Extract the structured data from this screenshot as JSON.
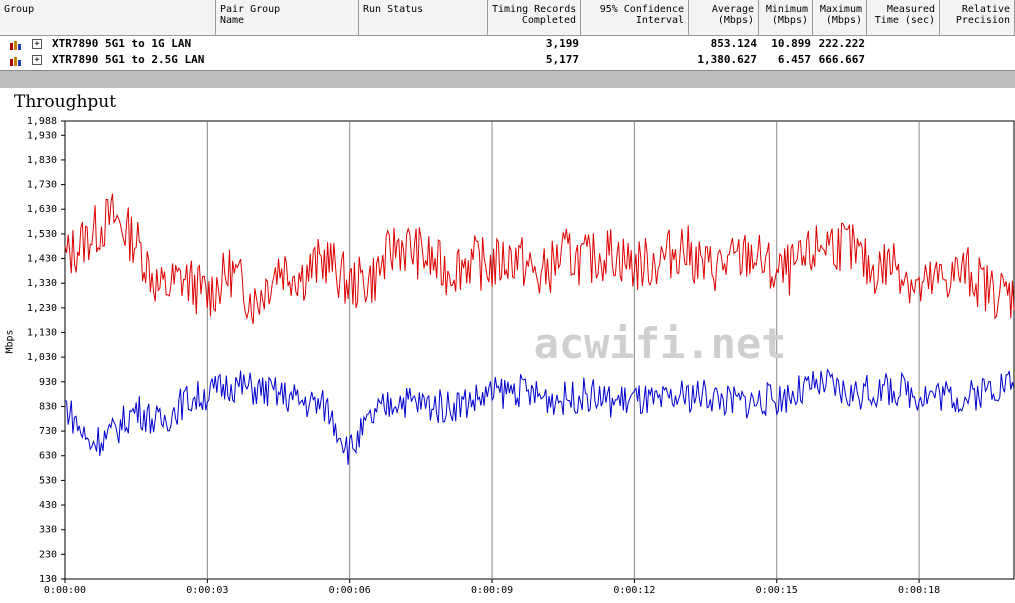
{
  "table": {
    "columns": [
      {
        "key": "group",
        "lines": [
          "",
          "Group"
        ]
      },
      {
        "key": "pair_group_name",
        "lines": [
          "Pair Group",
          "Name"
        ]
      },
      {
        "key": "run_status",
        "lines": [
          "",
          "Run Status"
        ]
      },
      {
        "key": "timing_records",
        "lines": [
          "Timing Records",
          "Completed"
        ]
      },
      {
        "key": "confidence",
        "lines": [
          "95% Confidence",
          "Interval"
        ]
      },
      {
        "key": "average",
        "lines": [
          "Average",
          "(Mbps)"
        ]
      },
      {
        "key": "minimum",
        "lines": [
          "Minimum",
          "(Mbps)"
        ]
      },
      {
        "key": "maximum",
        "lines": [
          "Maximum",
          "(Mbps)"
        ]
      },
      {
        "key": "measured_time",
        "lines": [
          "Measured",
          "Time (sec)"
        ]
      },
      {
        "key": "relative_precision",
        "lines": [
          "Relative",
          "Precision"
        ]
      }
    ],
    "rows": [
      {
        "expand": "+",
        "group": "XTR7890 5G1 to 1G LAN",
        "records": "3,199",
        "average": "853.124",
        "minimum": "10.899",
        "maximum": "222.222",
        "color": "#0000cc"
      },
      {
        "expand": "+",
        "group": "XTR7890 5G1 to 2.5G LAN",
        "records": "5,177",
        "average": "1,380.627",
        "minimum": "6.457",
        "maximum": "666.667",
        "color": "#dd0000"
      }
    ]
  },
  "chart_data": {
    "type": "line",
    "title": "Throughput",
    "ylabel": "Mbps",
    "xlabel": "",
    "y_ticks": [
      1988,
      1930,
      1830,
      1730,
      1630,
      1530,
      1430,
      1330,
      1230,
      1130,
      1030,
      930,
      830,
      730,
      630,
      530,
      430,
      330,
      230,
      130
    ],
    "y_tick_labels": [
      "1,988",
      "1,930",
      "1,830",
      "1,730",
      "1,630",
      "1,530",
      "1,430",
      "1,330",
      "1,230",
      "1,130",
      "1,030",
      "930",
      "830",
      "730",
      "630",
      "530",
      "430",
      "330",
      "230",
      "130"
    ],
    "ylim": [
      130,
      1988
    ],
    "x_tick_labels": [
      "0:00:00",
      "0:00:03",
      "0:00:06",
      "0:00:09",
      "0:00:12",
      "0:00:15",
      "0:00:18"
    ],
    "x_ticks": [
      0,
      3,
      6,
      9,
      12,
      15,
      18
    ],
    "xlim": [
      0,
      20
    ],
    "grid": true,
    "watermark": "acwifi.net",
    "series": [
      {
        "name": "XTR7890 5G1 to 2.5G LAN",
        "color": "#dd0000",
        "x": [
          0,
          0.5,
          1,
          1.5,
          2,
          2.5,
          3,
          3.5,
          4,
          4.5,
          5,
          5.5,
          6,
          6.5,
          7,
          7.5,
          8,
          8.5,
          9,
          9.5,
          10,
          10.5,
          11,
          11.5,
          12,
          12.5,
          13,
          13.5,
          14,
          14.5,
          15,
          15.5,
          16,
          16.5,
          17,
          17.5,
          18,
          18.5,
          19,
          19.5,
          20
        ],
        "values": [
          1430,
          1520,
          1600,
          1500,
          1300,
          1350,
          1280,
          1380,
          1250,
          1400,
          1360,
          1430,
          1320,
          1350,
          1490,
          1450,
          1380,
          1420,
          1400,
          1440,
          1350,
          1450,
          1420,
          1460,
          1400,
          1420,
          1480,
          1390,
          1410,
          1450,
          1360,
          1400,
          1500,
          1480,
          1380,
          1420,
          1300,
          1350,
          1380,
          1300,
          1280
        ]
      },
      {
        "name": "XTR7890 5G1 to 1G LAN",
        "color": "#0000cc",
        "x": [
          0,
          0.5,
          1,
          1.5,
          2,
          2.5,
          3,
          3.5,
          4,
          4.5,
          5,
          5.5,
          6,
          6.5,
          7,
          7.5,
          8,
          8.5,
          9,
          9.5,
          10,
          10.5,
          11,
          11.5,
          12,
          12.5,
          13,
          13.5,
          14,
          14.5,
          15,
          15.5,
          16,
          16.5,
          17,
          17.5,
          18,
          18.5,
          19,
          19.5,
          20
        ],
        "values": [
          840,
          680,
          720,
          820,
          760,
          850,
          880,
          920,
          900,
          880,
          850,
          830,
          650,
          790,
          860,
          840,
          830,
          850,
          880,
          900,
          870,
          860,
          880,
          850,
          860,
          840,
          870,
          880,
          850,
          850,
          860,
          890,
          920,
          880,
          890,
          900,
          880,
          880,
          860,
          910,
          930
        ]
      }
    ]
  }
}
